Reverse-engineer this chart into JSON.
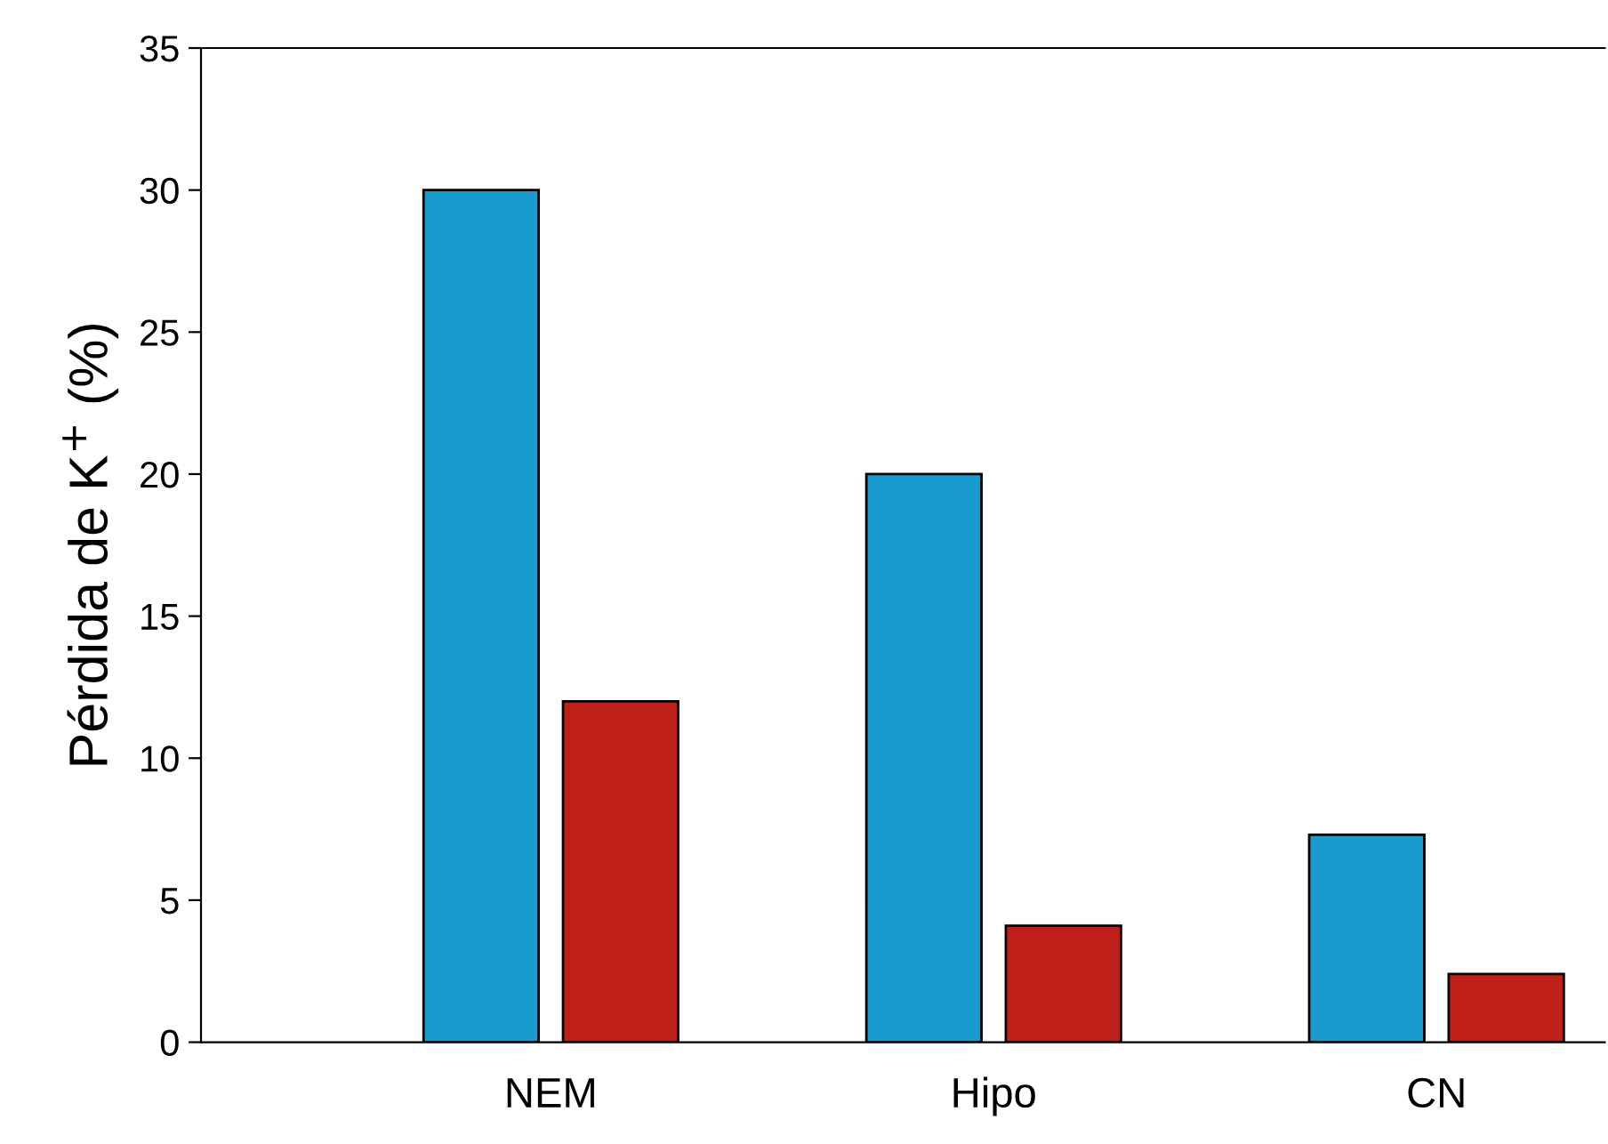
{
  "chart_data": {
    "type": "bar",
    "ylabel": "Pérdida de K$^{+}$ (%)",
    "categories": [
      "NEM",
      "Hipo",
      "CN"
    ],
    "series": [
      {
        "color": "#1a9bd0",
        "values": [
          30,
          20,
          7.3
        ]
      },
      {
        "color": "#c0201a",
        "values": [
          12,
          4.1,
          2.4
        ]
      }
    ],
    "ylim": [
      0,
      35
    ],
    "yticks": [
      0,
      5,
      10,
      15,
      20,
      25,
      30,
      35
    ],
    "grid": false,
    "legend": false
  }
}
